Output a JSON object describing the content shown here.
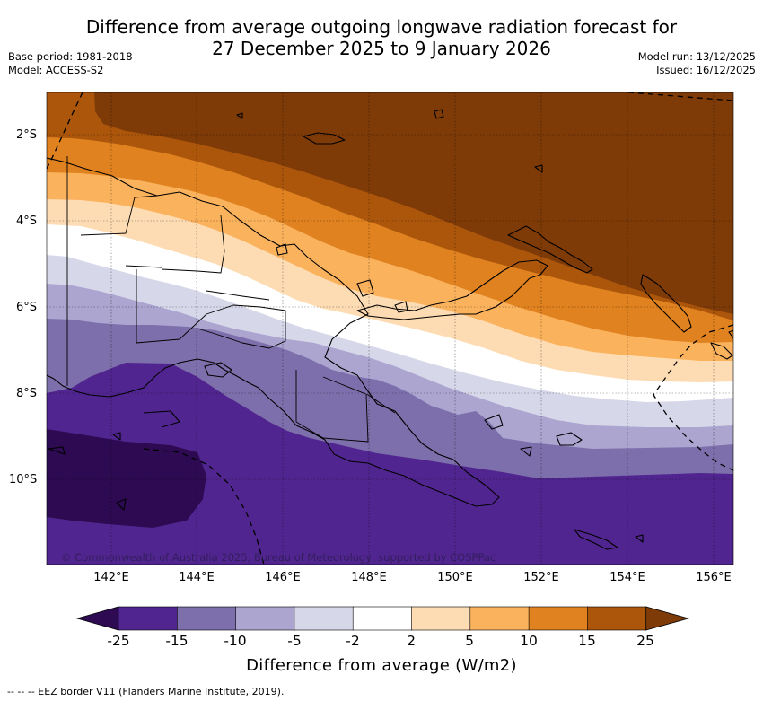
{
  "title_line1": "Difference from average outgoing longwave radiation forecast for",
  "title_line2": "27 December 2025 to 9 January 2026",
  "base_period": "Base period: 1981-2018",
  "model": "Model: ACCESS-S2",
  "model_run": "Model run: 13/12/2025",
  "issued": "Issued: 16/12/2025",
  "lat_labels": [
    "2°S",
    "4°S",
    "6°S",
    "8°S",
    "10°S"
  ],
  "lon_labels": [
    "142°E",
    "144°E",
    "146°E",
    "148°E",
    "150°E",
    "152°E",
    "154°E",
    "156°E"
  ],
  "copyright": "© Commonwealth of Australia 2025, Bureau of Meteorology, supported by COSPPac",
  "colorbar": {
    "ticks": [
      "-25",
      "-15",
      "-10",
      "-5",
      "-2",
      "2",
      "5",
      "10",
      "15",
      "25"
    ],
    "colors": [
      "#2d0a52",
      "#51258f",
      "#7d6fab",
      "#aba5d0",
      "#d7d7ea",
      "#ffffff",
      "#fedcb3",
      "#fbb25d",
      "#e0821f",
      "#ac560c",
      "#7e3b08"
    ],
    "label": "Difference from average (W/m2)"
  },
  "footnote": "-- -- -- EEZ border V11 (Flanders Marine Institute, 2019)."
}
